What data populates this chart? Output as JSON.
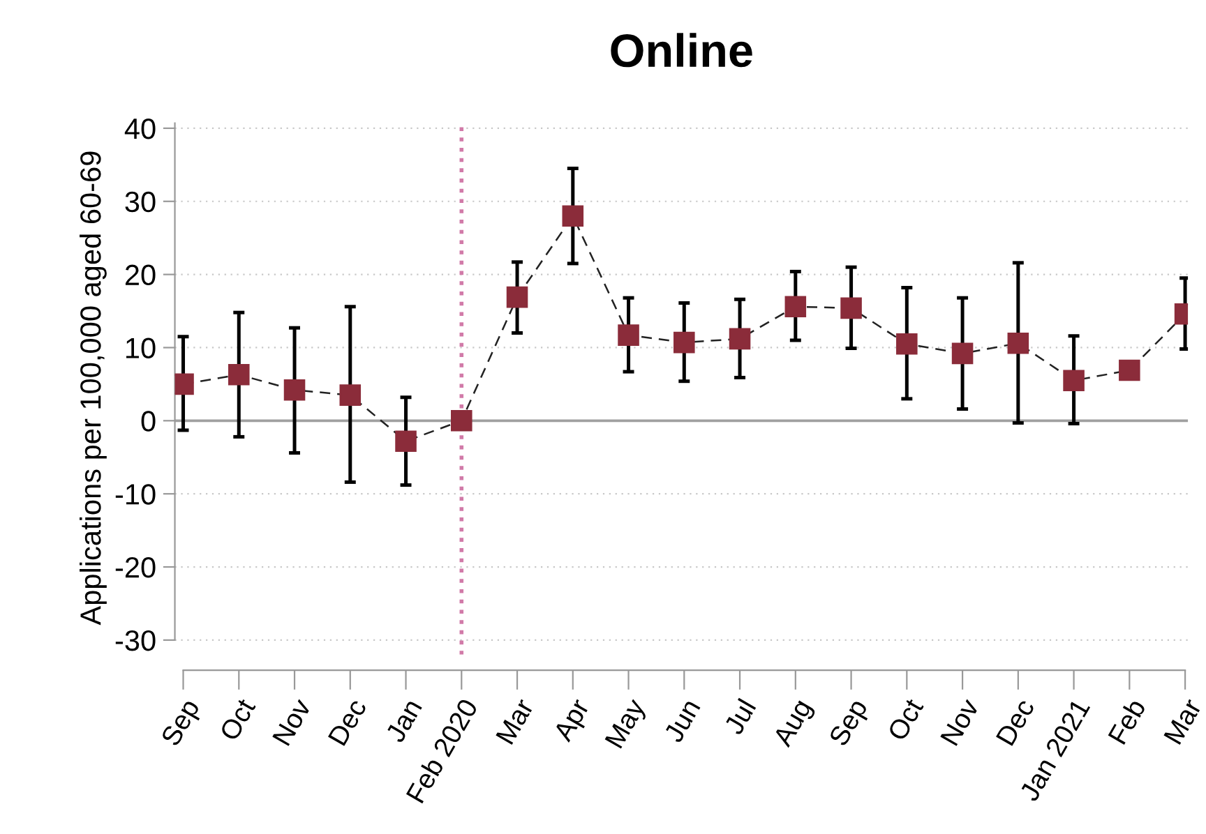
{
  "chart_data": {
    "type": "line",
    "title": "Online",
    "ylabel": "Applications per 100,000 aged 60-69",
    "categories": [
      "Sep",
      "Oct",
      "Nov",
      "Dec",
      "Jan",
      "Feb 2020",
      "Mar",
      "Apr",
      "May",
      "Jun",
      "Jul",
      "Aug",
      "Sep",
      "Oct",
      "Nov",
      "Dec",
      "Jan 2021",
      "Feb",
      "Mar"
    ],
    "series": [
      {
        "color": "#8b2c3a",
        "values": [
          5.0,
          6.3,
          4.2,
          3.5,
          -2.8,
          0,
          16.9,
          28.0,
          11.7,
          10.7,
          11.2,
          15.6,
          15.4,
          10.5,
          9.2,
          10.6,
          5.5,
          6.9,
          14.6
        ],
        "errors": [
          [
            -1.3,
            11.5
          ],
          [
            -2.2,
            14.8
          ],
          [
            -4.4,
            12.7
          ],
          [
            -8.4,
            15.6
          ],
          [
            -8.8,
            3.2
          ],
          null,
          [
            12.0,
            21.7
          ],
          [
            21.5,
            34.5
          ],
          [
            6.7,
            16.8
          ],
          [
            5.4,
            16.1
          ],
          [
            5.9,
            16.6
          ],
          [
            11.0,
            20.4
          ],
          [
            9.9,
            21.0
          ],
          [
            3.0,
            18.2
          ],
          [
            1.6,
            16.8
          ],
          [
            -0.3,
            21.6
          ],
          [
            -0.4,
            11.6
          ],
          null,
          [
            9.8,
            19.5
          ]
        ]
      }
    ],
    "ylim": [
      -32,
      41
    ],
    "yticks": [
      -30,
      -20,
      -10,
      0,
      10,
      20,
      30,
      40
    ],
    "grid": "y",
    "marker": "square",
    "line_style": "dashed",
    "ref_lines": [
      {
        "axis": "x",
        "value": "Feb 2020",
        "color": "#d17aa8",
        "line_style": "dotted"
      },
      {
        "axis": "y",
        "value": 0,
        "color": "#a0a0a0",
        "line_style": "solid"
      }
    ]
  }
}
